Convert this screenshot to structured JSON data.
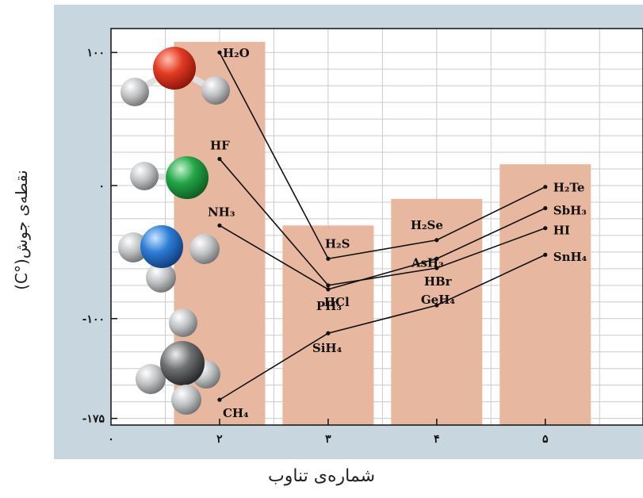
{
  "chart_data": {
    "type": "line",
    "title": "",
    "xlabel": "شماره‌ی تناوب",
    "ylabel": "نقطه‌ی جوش(°C)",
    "x_ticks": [
      "۰",
      "۲",
      "۳",
      "۴",
      "۵"
    ],
    "y_ticks": [
      "۱۰۰",
      "۰",
      "-۱۰۰",
      "-۱۷۵"
    ],
    "y_tick_values": [
      100,
      0,
      -100,
      -175
    ],
    "x": [
      2,
      3,
      4,
      5
    ],
    "xlim": [
      1,
      5.9
    ],
    "ylim": [
      -180,
      118
    ],
    "grid": true,
    "bars": [
      {
        "x": 2,
        "top": 108
      },
      {
        "x": 3,
        "top": -30
      },
      {
        "x": 4,
        "top": -10
      },
      {
        "x": 5,
        "top": 16
      }
    ],
    "series": [
      {
        "labels": [
          "H₂O",
          "H₂S",
          "H₂Se",
          "H₂Te"
        ],
        "values": [
          100,
          -55,
          -41,
          -1
        ]
      },
      {
        "labels": [
          "HF",
          "HCl",
          "HBr",
          "HI"
        ],
        "values": [
          20,
          -75,
          -62,
          -32
        ]
      },
      {
        "labels": [
          "NH₃",
          "PH₃",
          "AsH₃",
          "SbH₃"
        ],
        "values": [
          -30,
          -78,
          -55,
          -17
        ]
      },
      {
        "labels": [
          "CH₄",
          "SiH₄",
          "GeH₄",
          "SnH₄"
        ],
        "values": [
          -161,
          -111,
          -90,
          -52
        ]
      }
    ],
    "colors": {
      "panel": "#c7d6df",
      "plot": "#ffffff",
      "bar": "#e8b79f",
      "grid": "#c9cbcc",
      "line": "#111111"
    },
    "molecule_icons": [
      "water-molecule-icon",
      "hydrogen-fluoride-molecule-icon",
      "ammonia-molecule-icon",
      "methane-molecule-icon"
    ]
  }
}
